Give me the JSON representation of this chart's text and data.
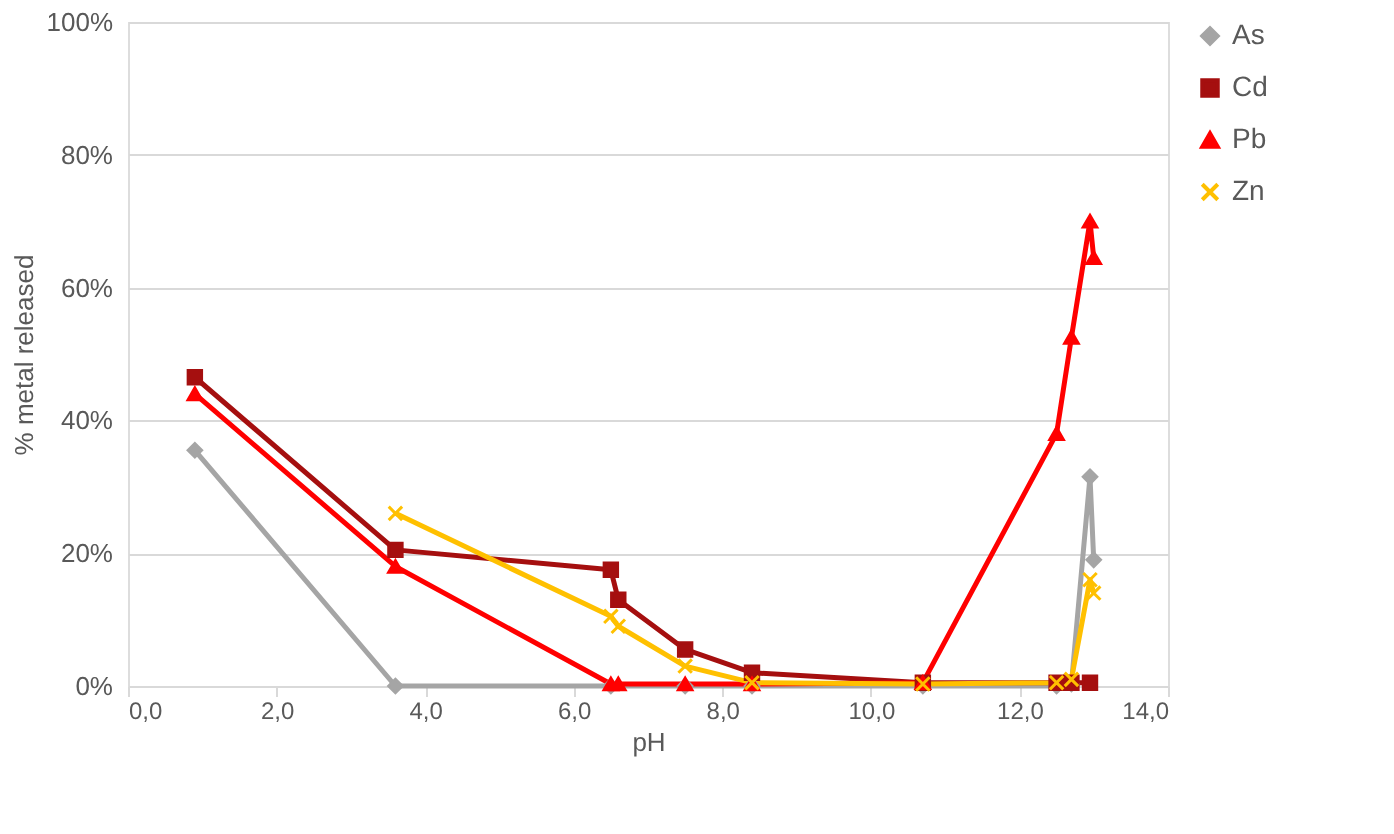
{
  "chart_data": {
    "type": "line",
    "xlabel": "pH",
    "ylabel": "% metal released",
    "xlim": [
      0,
      14
    ],
    "xticks": [
      {
        "value": 0,
        "label": "0,0"
      },
      {
        "value": 2,
        "label": "2,0"
      },
      {
        "value": 4,
        "label": "4,0"
      },
      {
        "value": 6,
        "label": "6,0"
      },
      {
        "value": 8,
        "label": "8,0"
      },
      {
        "value": 10,
        "label": "10,0"
      },
      {
        "value": 12,
        "label": "12,0"
      },
      {
        "value": 14,
        "label": "14,0"
      }
    ],
    "ylim": [
      0,
      100
    ],
    "yticks": [
      {
        "value": 0,
        "label": "0%"
      },
      {
        "value": 20,
        "label": "20%"
      },
      {
        "value": 40,
        "label": "40%"
      },
      {
        "value": 60,
        "label": "60%"
      },
      {
        "value": 80,
        "label": "80%"
      },
      {
        "value": 100,
        "label": "100%"
      }
    ],
    "grid": "y",
    "legend": "right",
    "series": [
      {
        "name": "As",
        "color": "#a5a5a5",
        "marker": "diamond",
        "x": [
          0.9,
          3.6,
          6.5,
          7.5,
          8.4,
          10.7,
          12.5,
          12.7,
          12.95,
          13.0
        ],
        "values": [
          35.5,
          0,
          0,
          0,
          0,
          0,
          0,
          0.3,
          31.5,
          19
        ]
      },
      {
        "name": "Cd",
        "color": "#a50f0f",
        "marker": "square",
        "x": [
          0.9,
          3.6,
          6.5,
          6.6,
          7.5,
          8.4,
          10.7,
          12.5,
          12.7,
          12.95
        ],
        "values": [
          46.5,
          20.5,
          17.5,
          13,
          5.5,
          2,
          0.5,
          0.5,
          0.5,
          0.5
        ]
      },
      {
        "name": "Pb",
        "color": "#ff0000",
        "marker": "triangle",
        "x": [
          0.9,
          3.6,
          6.5,
          6.6,
          7.5,
          8.4,
          10.7,
          12.5,
          12.7,
          12.95,
          13.0
        ],
        "values": [
          44,
          18,
          0.3,
          0.3,
          0.3,
          0.3,
          0.5,
          38,
          52.5,
          70,
          64.5
        ]
      },
      {
        "name": "Zn",
        "color": "#ffc000",
        "marker": "cross",
        "x": [
          3.6,
          6.5,
          6.6,
          7.5,
          8.4,
          10.7,
          12.5,
          12.7,
          12.95,
          13.0
        ],
        "values": [
          26,
          10.5,
          9,
          3,
          0.5,
          0.3,
          0.5,
          1,
          16,
          14
        ]
      }
    ]
  }
}
